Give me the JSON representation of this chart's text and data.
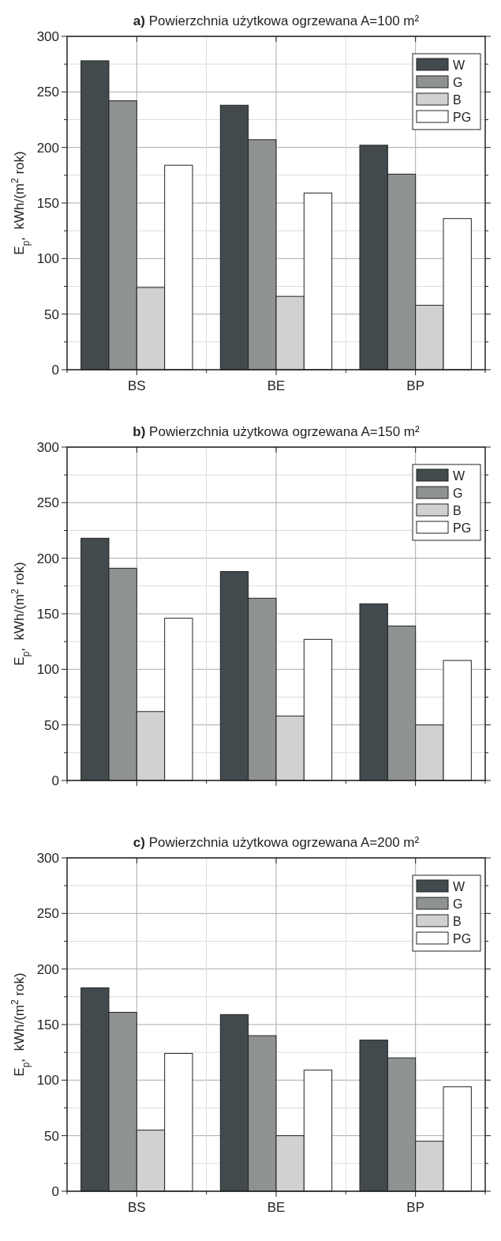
{
  "chart_data": [
    {
      "type": "bar",
      "title": "a) Powierzchnia użytkowa ogrzewana A=100 m²",
      "ylabel": "E$_{p}$,  kWh/(m$^{2}$ rok)",
      "categories": [
        "BS",
        "BE",
        "BP"
      ],
      "series": [
        {
          "name": "W",
          "color": "#424a4d",
          "values": [
            278,
            238,
            202
          ]
        },
        {
          "name": "G",
          "color": "#8e9293",
          "values": [
            242,
            207,
            176
          ]
        },
        {
          "name": "B",
          "color": "#d1d1cf",
          "values": [
            74,
            66,
            58
          ]
        },
        {
          "name": "PG",
          "color": "#ffffff",
          "values": [
            184,
            159,
            136
          ]
        }
      ],
      "ylim": [
        0,
        300
      ],
      "yticks": [
        0,
        {
          "value": 25,
          "label": null
        },
        50,
        {
          "value": 75,
          "label": null
        },
        100,
        {
          "value": 125,
          "label": null
        },
        150,
        {
          "value": 175,
          "label": null
        },
        200,
        {
          "value": 225,
          "label": null
        },
        250,
        {
          "value": 275,
          "label": null
        },
        300
      ],
      "grid": true,
      "legend": "top right"
    },
    {
      "type": "bar",
      "title": "b) Powierzchnia użytkowa ogrzewana A=150 m²",
      "ylabel": "E$_{p}$,  kWh/(m$^{2}$ rok)",
      "categories": [
        null,
        null,
        null
      ],
      "series": [
        {
          "name": "W",
          "color": "#424a4d",
          "values": [
            218,
            188,
            159
          ]
        },
        {
          "name": "G",
          "color": "#8e9293",
          "values": [
            191,
            164,
            139
          ]
        },
        {
          "name": "B",
          "color": "#d1d1cf",
          "values": [
            62,
            58,
            50
          ]
        },
        {
          "name": "PG",
          "color": "#ffffff",
          "values": [
            146,
            127,
            108
          ]
        }
      ],
      "ylim": [
        0,
        300
      ],
      "yticks": [
        0,
        {
          "value": 25,
          "label": null
        },
        50,
        {
          "value": 75,
          "label": null
        },
        100,
        {
          "value": 125,
          "label": null
        },
        150,
        {
          "value": 175,
          "label": null
        },
        200,
        {
          "value": 225,
          "label": null
        },
        250,
        {
          "value": 275,
          "label": null
        },
        300
      ],
      "grid": true,
      "legend": "top right",
      "tick_labels": "y"
    },
    {
      "type": "bar",
      "title": "c) Powierzchnia użytkowa ogrzewana A=200 m²",
      "ylabel": "E$_{p}$,  kWh/(m$^{2}$ rok)",
      "categories": [
        "BS",
        "BE",
        "BP"
      ],
      "series": [
        {
          "name": "W",
          "color": "#424a4d",
          "values": [
            183,
            159,
            136
          ]
        },
        {
          "name": "G",
          "color": "#8e9293",
          "values": [
            161,
            140,
            120
          ]
        },
        {
          "name": "B",
          "color": "#d1d1cf",
          "values": [
            55,
            50,
            45
          ]
        },
        {
          "name": "PG",
          "color": "#ffffff",
          "values": [
            124,
            109,
            94
          ]
        }
      ],
      "ylim": [
        0,
        300
      ],
      "yticks": [
        0,
        {
          "value": 25,
          "label": null
        },
        50,
        {
          "value": 75,
          "label": null
        },
        100,
        {
          "value": 125,
          "label": null
        },
        150,
        {
          "value": 175,
          "label": null
        },
        200,
        {
          "value": 225,
          "label": null
        },
        250,
        {
          "value": 275,
          "label": null
        },
        300
      ],
      "grid": true,
      "legend": "top right"
    }
  ]
}
